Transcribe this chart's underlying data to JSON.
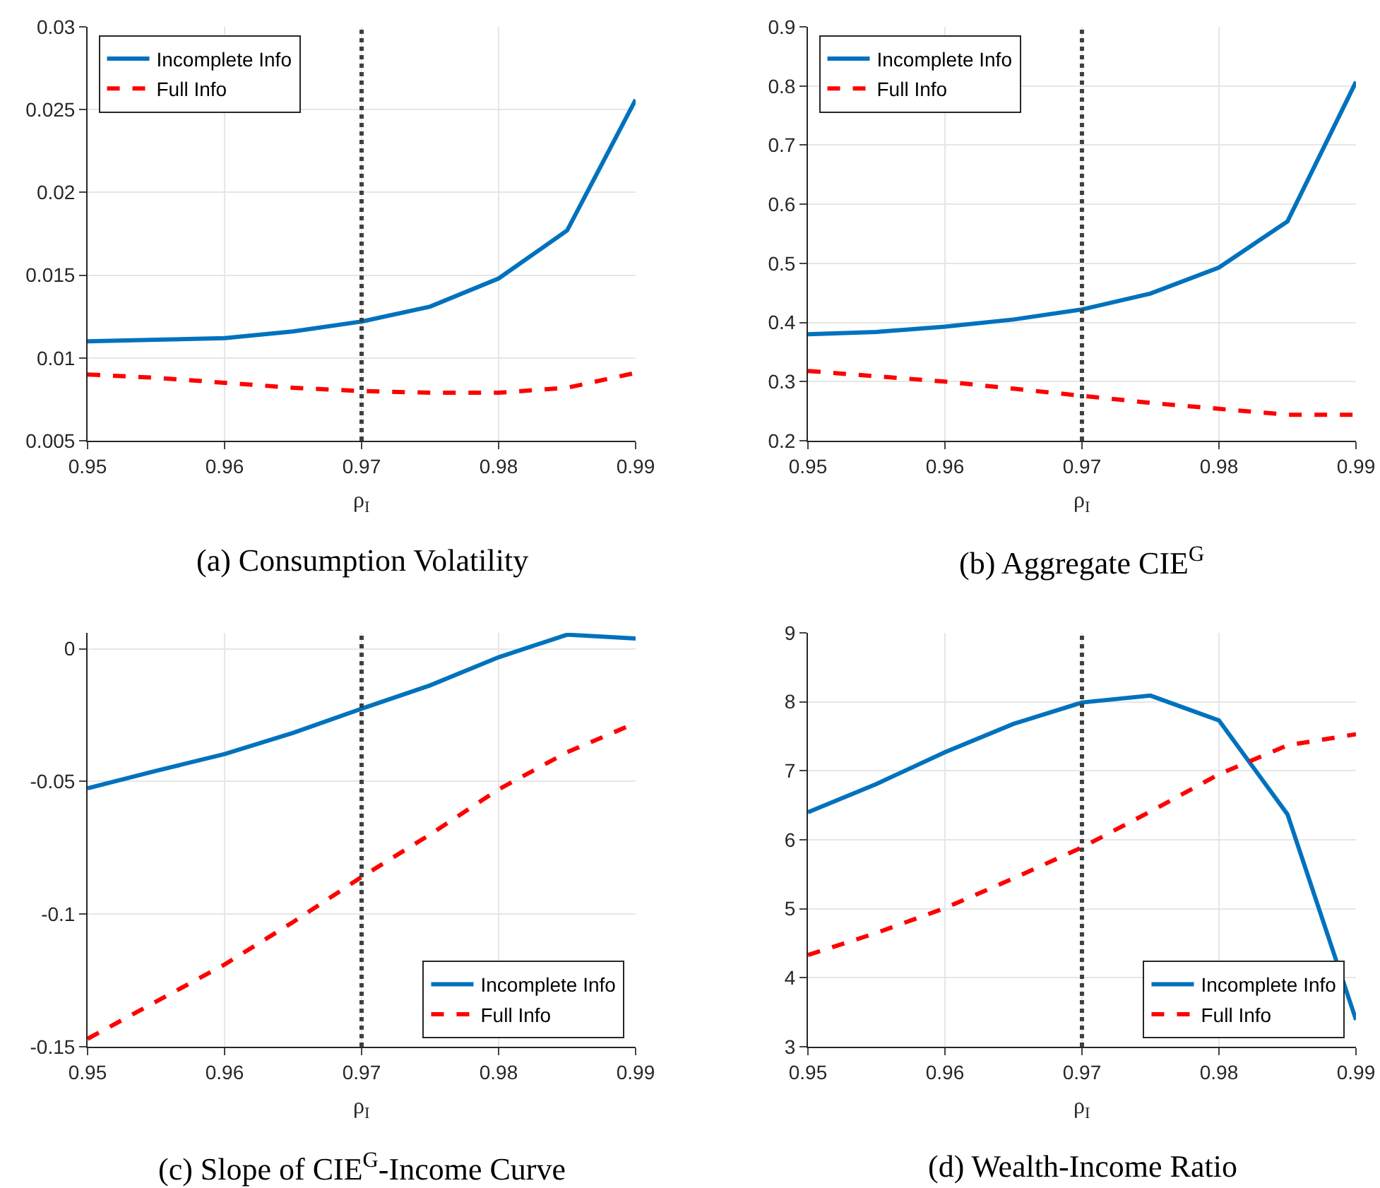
{
  "chart_data": [
    {
      "type": "line",
      "title": "(a) Consumption Volatility",
      "xlabel": "ρ$_{I}$",
      "x": [
        0.95,
        0.955,
        0.96,
        0.965,
        0.97,
        0.975,
        0.98,
        0.985,
        0.99
      ],
      "series": [
        {
          "name": "Incomplete Info",
          "color": "#0072bd",
          "line_style": "solid",
          "values": [
            0.011,
            0.0111,
            0.0112,
            0.0116,
            0.0122,
            0.0131,
            0.0148,
            0.0177,
            0.0256
          ]
        },
        {
          "name": "Full Info",
          "color": "#ff0000",
          "line_style": "dashed",
          "values": [
            0.009,
            0.0088,
            0.0085,
            0.0082,
            0.008,
            0.0079,
            0.0079,
            0.0082,
            0.0091
          ]
        }
      ],
      "xlim": [
        0.95,
        0.99
      ],
      "xticks": [
        0.95,
        0.96,
        0.97,
        0.98,
        0.99
      ],
      "ylim": [
        0.005,
        0.03
      ],
      "yticks": [
        0.005,
        0.01,
        0.015,
        0.02,
        0.025,
        0.03
      ],
      "ref_lines": [
        {
          "axis": "x",
          "value": 0.97,
          "color": "#404040",
          "line_style": "dotted"
        }
      ],
      "grid": true,
      "legend": "top left"
    },
    {
      "type": "line",
      "title": "(b) Aggregate CIE$^{G}$",
      "xlabel": "ρ$_{I}$",
      "x": [
        0.95,
        0.955,
        0.96,
        0.965,
        0.97,
        0.975,
        0.98,
        0.985,
        0.99
      ],
      "series": [
        {
          "name": "Incomplete Info",
          "color": "#0072bd",
          "line_style": "solid",
          "values": [
            0.38,
            0.384,
            0.393,
            0.405,
            0.422,
            0.449,
            0.493,
            0.571,
            0.807
          ]
        },
        {
          "name": "Full Info",
          "color": "#ff0000",
          "line_style": "dashed",
          "values": [
            0.318,
            0.309,
            0.3,
            0.288,
            0.276,
            0.264,
            0.254,
            0.244,
            0.244
          ]
        }
      ],
      "xlim": [
        0.95,
        0.99
      ],
      "xticks": [
        0.95,
        0.96,
        0.97,
        0.98,
        0.99
      ],
      "ylim": [
        0.2,
        0.9
      ],
      "yticks": [
        0.2,
        0.3,
        0.4,
        0.5,
        0.6,
        0.7,
        0.8,
        0.9
      ],
      "ref_lines": [
        {
          "axis": "x",
          "value": 0.97,
          "color": "#404040",
          "line_style": "dotted"
        }
      ],
      "grid": true,
      "legend": "top left"
    },
    {
      "type": "line",
      "title": "(c) Slope of CIE$^{G}$-Income Curve",
      "xlabel": "ρ$_{I}$",
      "x": [
        0.95,
        0.955,
        0.96,
        0.965,
        0.97,
        0.975,
        0.98,
        0.985,
        0.99
      ],
      "series": [
        {
          "name": "Incomplete Info",
          "color": "#0072bd",
          "line_style": "solid",
          "values": [
            -0.0526,
            -0.046,
            -0.0397,
            -0.0317,
            -0.0226,
            -0.0138,
            -0.0032,
            0.0053,
            0.0039
          ]
        },
        {
          "name": "Full Info",
          "color": "#ff0000",
          "line_style": "dashed",
          "values": [
            -0.147,
            -0.133,
            -0.119,
            -0.103,
            -0.086,
            -0.07,
            -0.053,
            -0.039,
            -0.028
          ]
        }
      ],
      "xlim": [
        0.95,
        0.99
      ],
      "xticks": [
        0.95,
        0.96,
        0.97,
        0.98,
        0.99
      ],
      "ylim": [
        -0.15,
        0.006
      ],
      "yticks": [
        -0.15,
        -0.1,
        -0.05,
        0
      ],
      "ref_lines": [
        {
          "axis": "x",
          "value": 0.97,
          "color": "#404040",
          "line_style": "dotted"
        }
      ],
      "grid": true,
      "legend": "bottom right"
    },
    {
      "type": "line",
      "title": "(d) Wealth-Income Ratio",
      "xlabel": "ρ$_{I}$",
      "x": [
        0.95,
        0.955,
        0.96,
        0.965,
        0.97,
        0.975,
        0.98,
        0.985,
        0.99
      ],
      "series": [
        {
          "name": "Incomplete Info",
          "color": "#0072bd",
          "line_style": "solid",
          "values": [
            6.4,
            6.81,
            7.27,
            7.68,
            7.99,
            8.09,
            7.73,
            6.37,
            3.39
          ]
        },
        {
          "name": "Full Info",
          "color": "#ff0000",
          "line_style": "dashed",
          "values": [
            4.33,
            4.65,
            5.01,
            5.44,
            5.89,
            6.41,
            6.95,
            7.37,
            7.53
          ]
        }
      ],
      "xlim": [
        0.95,
        0.99
      ],
      "xticks": [
        0.95,
        0.96,
        0.97,
        0.98,
        0.99
      ],
      "ylim": [
        3,
        9
      ],
      "yticks": [
        3,
        4,
        5,
        6,
        7,
        8,
        9
      ],
      "ref_lines": [
        {
          "axis": "x",
          "value": 0.97,
          "color": "#404040",
          "line_style": "dotted"
        }
      ],
      "grid": true,
      "legend": "bottom right"
    }
  ]
}
